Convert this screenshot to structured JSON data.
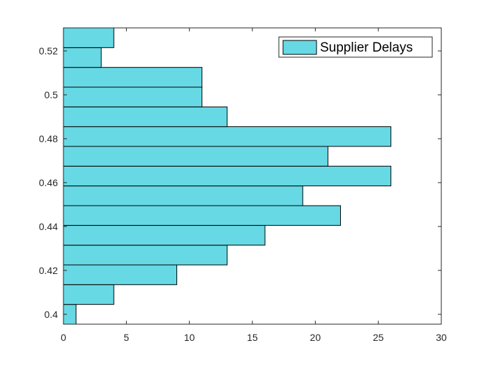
{
  "chart_data": {
    "type": "bar",
    "orientation": "horizontal",
    "title": "",
    "xlabel": "",
    "ylabel": "",
    "xlim": [
      0,
      30
    ],
    "ylim": [
      0.3955,
      0.5305
    ],
    "xticks": [
      "0",
      "5",
      "10",
      "15",
      "20",
      "25",
      "30"
    ],
    "yticks": [
      "0.4",
      "0.42",
      "0.44",
      "0.46",
      "0.48",
      "0.5",
      "0.52"
    ],
    "bins": [
      [
        0.3955,
        0.4045
      ],
      [
        0.4045,
        0.4135
      ],
      [
        0.4135,
        0.4225
      ],
      [
        0.4225,
        0.4315
      ],
      [
        0.4315,
        0.4405
      ],
      [
        0.4405,
        0.4495
      ],
      [
        0.4495,
        0.4585
      ],
      [
        0.4585,
        0.4675
      ],
      [
        0.4675,
        0.4765
      ],
      [
        0.4765,
        0.4855
      ],
      [
        0.4855,
        0.4945
      ],
      [
        0.4945,
        0.5035
      ],
      [
        0.5035,
        0.5125
      ],
      [
        0.5125,
        0.5215
      ],
      [
        0.5215,
        0.5305
      ]
    ],
    "series": [
      {
        "name": "Supplier Delays",
        "color": "#66d9e4",
        "values": [
          1,
          4,
          9,
          13,
          16,
          22,
          19,
          26,
          21,
          26,
          13,
          11,
          11,
          3,
          4
        ]
      }
    ],
    "legend": "top-right",
    "grid": false,
    "edge_color": "#000000",
    "axis_color": "#262626"
  }
}
